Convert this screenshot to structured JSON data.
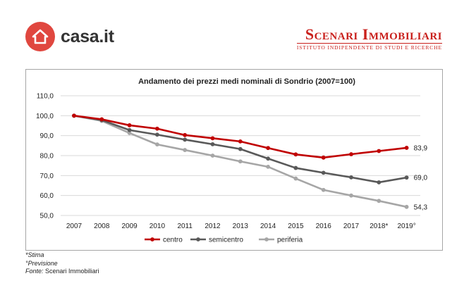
{
  "brand": {
    "logo_text": "casa.it",
    "partner_title": "Scenari Immobiliari",
    "partner_subtitle": "ISTITUTO INDIPENDENTE DI STUDI E RICERCHE"
  },
  "notes": {
    "stima_label": "*Stima",
    "previsione_label": "°Previsione",
    "fonte_label": "Fonte:",
    "fonte_value": "Scenari Immobiliari"
  },
  "colors": {
    "centro": "#c00000",
    "semicentro": "#595959",
    "periferia": "#a6a6a6",
    "brand_red": "#e0473f"
  },
  "chart_data": {
    "type": "line",
    "title": "Andamento dei prezzi medi nominali di Sondrio (2007=100)",
    "xlabel": "",
    "ylabel": "",
    "categories": [
      "2007",
      "2008",
      "2009",
      "2010",
      "2011",
      "2012",
      "2013",
      "2014",
      "2015",
      "2016",
      "2017",
      "2018*",
      "2019°"
    ],
    "ylim": [
      50,
      110
    ],
    "yticks": [
      "110,0",
      "100,0",
      "90,0",
      "80,0",
      "70,0",
      "60,0",
      "50,0"
    ],
    "grid": true,
    "legend_position": "bottom",
    "series": [
      {
        "name": "centro",
        "values": [
          100,
          98.2,
          95.2,
          93.5,
          90.3,
          88.7,
          87.1,
          83.8,
          80.6,
          79.0,
          80.7,
          82.3,
          83.9
        ],
        "end_label": "83,9"
      },
      {
        "name": "semicentro",
        "values": [
          100,
          97.8,
          92.8,
          90.5,
          88.0,
          85.7,
          83.3,
          78.5,
          73.8,
          71.4,
          69.1,
          66.6,
          69.0
        ],
        "end_label": "69,0"
      },
      {
        "name": "periferia",
        "values": [
          100,
          97.4,
          91.3,
          85.6,
          82.8,
          80.0,
          77.1,
          74.4,
          68.5,
          62.8,
          60.0,
          57.3,
          54.3
        ],
        "end_label": "54,3"
      }
    ]
  }
}
